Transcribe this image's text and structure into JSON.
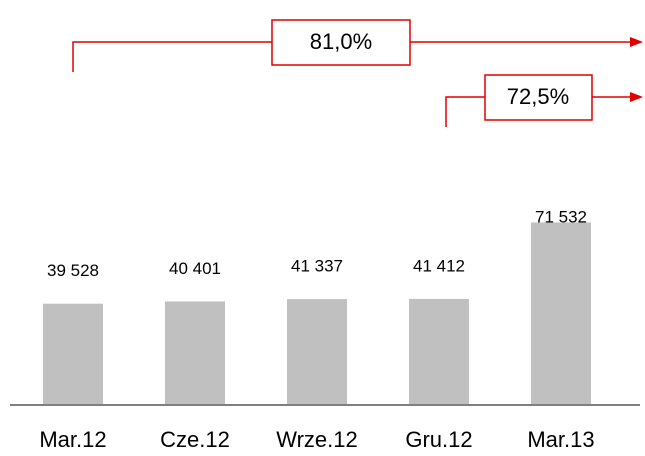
{
  "chart_data": {
    "type": "bar",
    "categories": [
      "Mar.12",
      "Cze.12",
      "Wrze.12",
      "Gru.12",
      "Mar.13"
    ],
    "values": [
      39528,
      40401,
      41337,
      41412,
      71532
    ],
    "value_labels": [
      "39 528",
      "40 401",
      "41 337",
      "41 412",
      "71 532"
    ],
    "color": "#c0c0c0",
    "ylim": [
      0,
      80000
    ],
    "annotations": [
      "81,0%",
      "72,5%"
    ]
  }
}
